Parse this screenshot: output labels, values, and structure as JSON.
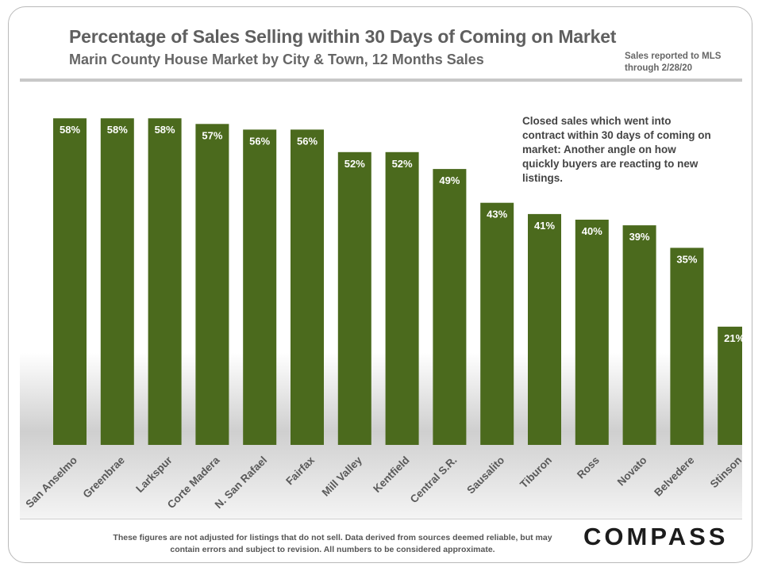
{
  "header": {
    "title": "Percentage of Sales Selling within 30 Days of Coming on Market",
    "subtitle": "Marin County House Market by City & Town, 12 Months Sales",
    "source_note": "Sales reported to MLS through 2/28/20"
  },
  "annotation": "Closed sales which went into contract within 30 days of coming on market: Another angle on how quickly buyers are reacting to new listings.",
  "footer": {
    "disclaimer": "These figures are not adjusted for listings that do not sell. Data derived from sources deemed reliable, but may contain errors and subject to revision. All numbers to be considered approximate.",
    "brand": "COMPASS"
  },
  "colors": {
    "bar": "#4b6a1d",
    "label": "#ffffff",
    "background": "#dcdcdc",
    "text": "#595959"
  },
  "chart_data": {
    "type": "bar",
    "title": "Percentage of Sales Selling within 30 Days of Coming on Market",
    "subtitle": "Marin County House Market by City & Town, 12 Months Sales",
    "xlabel": "",
    "ylabel": "",
    "ylim": [
      0,
      60
    ],
    "grid": false,
    "legend": "none",
    "categories": [
      "San Anselmo",
      "Greenbrae",
      "Larkspur",
      "Corte Madera",
      "N. San Rafael",
      "Fairfax",
      "Mill Valley",
      "Kentfield",
      "Central S.R.",
      "Sausalito",
      "Tiburon",
      "Ross",
      "Novato",
      "Belvedere",
      "Stinson"
    ],
    "values": [
      58,
      58,
      58,
      57,
      56,
      56,
      52,
      52,
      49,
      43,
      41,
      40,
      39,
      35,
      21
    ],
    "data_labels": [
      "58%",
      "58%",
      "58%",
      "57%",
      "56%",
      "56%",
      "52%",
      "52%",
      "49%",
      "43%",
      "41%",
      "40%",
      "39%",
      "35%",
      "21%"
    ]
  }
}
